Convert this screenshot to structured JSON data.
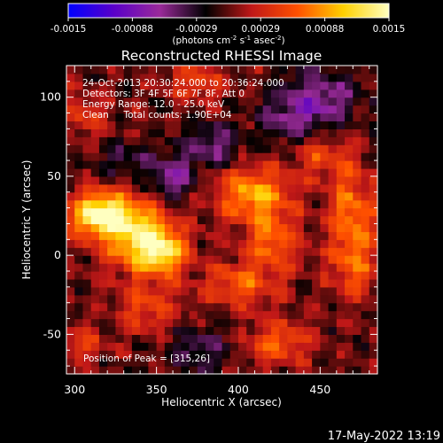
{
  "chart_data": {
    "type": "heatmap",
    "title": "Reconstructed RHESSI Image",
    "xlabel": "Heliocentric X (arcsec)",
    "ylabel": "Heliocentric Y (arcsec)",
    "xlim": [
      295,
      485
    ],
    "ylim": [
      -75,
      120
    ],
    "xticks": [
      300,
      350,
      400,
      450
    ],
    "yticks": [
      -50,
      0,
      50,
      100
    ],
    "colorbar": {
      "ticks": [
        "-0.0015",
        "-0.00088",
        "-0.00029",
        "0.00029",
        "0.00088",
        "0.0015"
      ],
      "range": [
        -0.0015,
        0.0015
      ],
      "unit_prefix": "(photons cm",
      "unit_exp1": "-2",
      "unit_mid": " s",
      "unit_exp2": "-1",
      "unit_mid2": " asec",
      "unit_exp3": "-2",
      "unit_suffix": ")",
      "colors": [
        "#0000ff",
        "#5a00c8",
        "#9a2a9a",
        "#000000",
        "#c01818",
        "#ff5000",
        "#ffd000",
        "#ffffc0"
      ]
    },
    "annotations": [
      "24-Oct-2013 20:30:24.000 to 20:36:24.000",
      "Detectors: 3F 4F 5F 6F 7F 8F, Att 0",
      "Energy Range: 12.0 - 25.0 keV",
      "Clean     Total counts: 1.90E+04"
    ],
    "peak_label": "Position of Peak = [315,26]",
    "peak": [
      315,
      26
    ],
    "sources": [
      {
        "x": 315,
        "y": 26,
        "amp": 0.0015,
        "sx": 12,
        "sy": 10
      },
      {
        "x": 340,
        "y": 12,
        "amp": 0.0012,
        "sx": 14,
        "sy": 16
      },
      {
        "x": 355,
        "y": 2,
        "amp": 0.0009,
        "sx": 10,
        "sy": 10
      },
      {
        "x": 408,
        "y": 40,
        "amp": 0.0009,
        "sx": 16,
        "sy": 12
      },
      {
        "x": 420,
        "y": 10,
        "amp": 0.0007,
        "sx": 12,
        "sy": 14
      },
      {
        "x": 400,
        "y": -18,
        "amp": 0.0006,
        "sx": 16,
        "sy": 10
      },
      {
        "x": 470,
        "y": 25,
        "amp": 0.0008,
        "sx": 10,
        "sy": 20
      },
      {
        "x": 452,
        "y": 62,
        "amp": 0.0005,
        "sx": 12,
        "sy": 10
      },
      {
        "x": 375,
        "y": 110,
        "amp": 0.0005,
        "sx": 14,
        "sy": 8
      },
      {
        "x": 305,
        "y": 90,
        "amp": 0.0004,
        "sx": 10,
        "sy": 10
      },
      {
        "x": 345,
        "y": -35,
        "amp": 0.0005,
        "sx": 12,
        "sy": 10
      },
      {
        "x": 425,
        "y": -55,
        "amp": 0.0006,
        "sx": 14,
        "sy": 10
      },
      {
        "x": 305,
        "y": -55,
        "amp": 0.0004,
        "sx": 10,
        "sy": 8
      },
      {
        "x": 470,
        "y": -10,
        "amp": 0.0005,
        "sx": 10,
        "sy": 12
      },
      {
        "x": 385,
        "y": 70,
        "amp": -0.0006,
        "sx": 12,
        "sy": 10
      },
      {
        "x": 360,
        "y": 50,
        "amp": -0.0007,
        "sx": 10,
        "sy": 10
      },
      {
        "x": 450,
        "y": 100,
        "amp": -0.0007,
        "sx": 16,
        "sy": 12
      },
      {
        "x": 430,
        "y": 85,
        "amp": -0.0005,
        "sx": 12,
        "sy": 10
      },
      {
        "x": 375,
        "y": -60,
        "amp": -0.0005,
        "sx": 12,
        "sy": 10
      },
      {
        "x": 330,
        "y": 60,
        "amp": -0.0004,
        "sx": 10,
        "sy": 8
      }
    ]
  },
  "footer": {
    "timestamp": "17-May-2022 13:19"
  }
}
